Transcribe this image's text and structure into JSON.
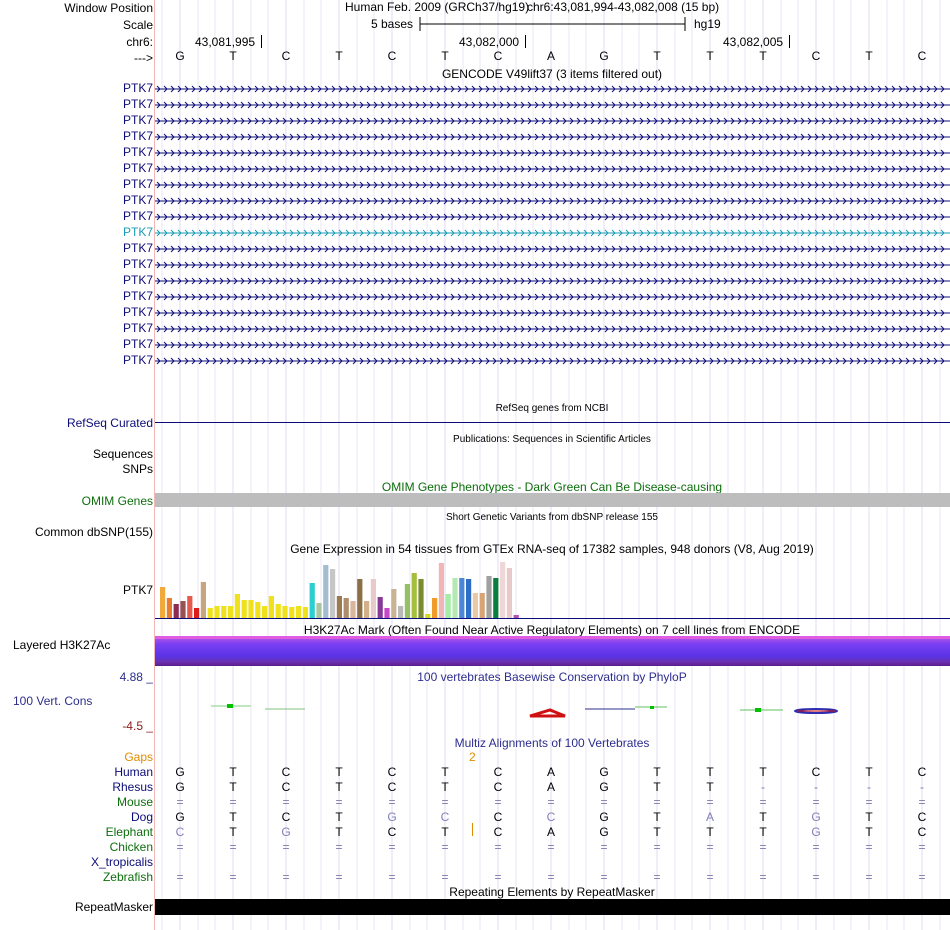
{
  "labels": {
    "window_position": "Window Position",
    "scale": "Scale",
    "chr": "chr6:",
    "strand": "--->",
    "refseq": "RefSeq Curated",
    "sequences": "Sequences",
    "snps": "SNPs",
    "omim": "OMIM Genes",
    "common_dbsnp": "Common dbSNP(155)",
    "gtex": "PTK7",
    "h3k27ac": "Layered H3K27Ac",
    "cons_max": "4.88 _",
    "cons": "100 Vert. Cons",
    "cons_min": "-4.5 _",
    "gaps": "Gaps",
    "repeatmasker": "RepeatMasker"
  },
  "header": {
    "assembly": "Human Feb. 2009 (GRCh37/hg19)",
    "position": "chr6:43,081,994-43,082,008 (15 bp)",
    "scale_label": "5 bases",
    "scale_db": "hg19",
    "coord1": "43,081,995",
    "coord2": "43,082,000",
    "coord3": "43,082,005"
  },
  "bases": [
    "G",
    "T",
    "C",
    "T",
    "C",
    "T",
    "C",
    "A",
    "G",
    "T",
    "T",
    "T",
    "C",
    "T",
    "C"
  ],
  "tracks": {
    "gencode_title": "GENCODE V49lift37 (3 items filtered out)",
    "refseq_title": "RefSeq genes from NCBI",
    "publications_title": "Publications: Sequences in Scientific Articles",
    "omim_title": "OMIM Gene Phenotypes - Dark Green Can Be Disease-causing",
    "dbsnp_title": "Short Genetic Variants from dbSNP release 155",
    "gtex_title": "Gene Expression in 54 tissues from GTEx RNA-seq of 17382 samples, 948 donors (V8, Aug 2019)",
    "h3k27ac_title": "H3K27Ac Mark (Often Found Near Active Regulatory Elements) on 7 cell lines from ENCODE",
    "phylop_title": "100 vertebrates Basewise Conservation by PhyloP",
    "multiz_title": "Multiz Alignments of 100 Vertebrates",
    "gap_count": "2",
    "repeat_title": "Repeating Elements by RepeatMasker"
  },
  "genes": [
    "PTK7",
    "PTK7",
    "PTK7",
    "PTK7",
    "PTK7",
    "PTK7",
    "PTK7",
    "PTK7",
    "PTK7",
    "PTK7",
    "PTK7",
    "PTK7",
    "PTK7",
    "PTK7",
    "PTK7",
    "PTK7",
    "PTK7",
    "PTK7"
  ],
  "highlighted_gene_index": 9,
  "colors": {
    "gene_navy": "#0c0c78",
    "gene_highlight": "#1a9bb5",
    "omim_green": "#006400",
    "repeat_black": "#000000",
    "h3k27ac_purple": "#7b3ff2",
    "gaps_orange": "#e08c00",
    "phylop_label": "#2d2d8f"
  },
  "gtex_bars": [
    {
      "v": 0.55,
      "c": "#f2a93b"
    },
    {
      "v": 0.35,
      "c": "#e87d2f"
    },
    {
      "v": 0.25,
      "c": "#8b2c55"
    },
    {
      "v": 0.3,
      "c": "#9a5151"
    },
    {
      "v": 0.4,
      "c": "#e65a4e"
    },
    {
      "v": 0.18,
      "c": "#dd1c1c"
    },
    {
      "v": 0.65,
      "c": "#c7a67f"
    },
    {
      "v": 0.17,
      "c": "#f0e11d"
    },
    {
      "v": 0.22,
      "c": "#f0e11d"
    },
    {
      "v": 0.22,
      "c": "#f0e11d"
    },
    {
      "v": 0.22,
      "c": "#f0e11d"
    },
    {
      "v": 0.42,
      "c": "#f0e11d"
    },
    {
      "v": 0.32,
      "c": "#f0e11d"
    },
    {
      "v": 0.32,
      "c": "#f0e11d"
    },
    {
      "v": 0.28,
      "c": "#f0e11d"
    },
    {
      "v": 0.22,
      "c": "#f0e11d"
    },
    {
      "v": 0.4,
      "c": "#f0e11d"
    },
    {
      "v": 0.25,
      "c": "#f0e11d"
    },
    {
      "v": 0.22,
      "c": "#f0e11d"
    },
    {
      "v": 0.2,
      "c": "#f0e11d"
    },
    {
      "v": 0.22,
      "c": "#f0e11d"
    },
    {
      "v": 0.2,
      "c": "#f0e11d"
    },
    {
      "v": 0.63,
      "c": "#2ccfcf"
    },
    {
      "v": 0.27,
      "c": "#a9c4a0"
    },
    {
      "v": 0.95,
      "c": "#a4bccf"
    },
    {
      "v": 0.88,
      "c": "#c6c6c6"
    },
    {
      "v": 0.4,
      "c": "#9b7a52"
    },
    {
      "v": 0.35,
      "c": "#b08c6a"
    },
    {
      "v": 0.3,
      "c": "#d9b59b"
    },
    {
      "v": 0.7,
      "c": "#8c7048"
    },
    {
      "v": 0.3,
      "c": "#d2b08a"
    },
    {
      "v": 0.7,
      "c": "#e8caca"
    },
    {
      "v": 0.38,
      "c": "#863c96"
    },
    {
      "v": 0.18,
      "c": "#c946c9"
    },
    {
      "v": 0.52,
      "c": "#c8b494"
    },
    {
      "v": 0.22,
      "c": "#b9b9b9"
    },
    {
      "v": 0.6,
      "c": "#97c063"
    },
    {
      "v": 0.8,
      "c": "#a3bf3c"
    },
    {
      "v": 0.7,
      "c": "#7a8c31"
    },
    {
      "v": 0.07,
      "c": "#dbd51b"
    },
    {
      "v": 0.35,
      "c": "#f09c2b"
    },
    {
      "v": 0.98,
      "c": "#f2b5b5"
    },
    {
      "v": 0.42,
      "c": "#a6eba6"
    },
    {
      "v": 0.72,
      "c": "#b5e8b5"
    },
    {
      "v": 0.72,
      "c": "#4b87d6"
    },
    {
      "v": 0.7,
      "c": "#2f6ec6"
    },
    {
      "v": 0.45,
      "c": "#ecc9a6"
    },
    {
      "v": 0.45,
      "c": "#d8a376"
    },
    {
      "v": 0.75,
      "c": "#a0a0a0"
    },
    {
      "v": 0.72,
      "c": "#0a7e3e"
    },
    {
      "v": 1.0,
      "c": "#f0d7d7"
    },
    {
      "v": 0.9,
      "c": "#e8caca"
    },
    {
      "v": 0.05,
      "c": "#b84fb8"
    }
  ],
  "multiz": [
    {
      "name": "Gaps",
      "color": "#e08c00",
      "kind": "gaps"
    },
    {
      "name": "Human",
      "color": "#0c0c78",
      "seq": [
        "G",
        "T",
        "C",
        "T",
        "C",
        "T",
        "C",
        "A",
        "G",
        "T",
        "T",
        "T",
        "C",
        "T",
        "C"
      ]
    },
    {
      "name": "Rhesus",
      "color": "#0c0c78",
      "seq": [
        "G",
        "T",
        "C",
        "T",
        "C",
        "T",
        "C",
        "A",
        "G",
        "T",
        "T",
        "-",
        "-",
        "-",
        "-"
      ]
    },
    {
      "name": "Mouse",
      "color": "#0c6e0c",
      "seq": [
        "=",
        "=",
        "=",
        "=",
        "=",
        "=",
        "=",
        "=",
        "=",
        "=",
        "=",
        "=",
        "=",
        "=",
        "="
      ]
    },
    {
      "name": "Dog",
      "color": "#0c0c78",
      "seq": [
        "G",
        "T",
        "C",
        "T",
        "G",
        "C",
        "C",
        "C",
        "G",
        "T",
        "A",
        "T",
        "G",
        "T",
        "C"
      ]
    },
    {
      "name": "Elephant",
      "color": "#0c6e0c",
      "seq": [
        "C",
        "T",
        "G",
        "T",
        "C",
        "T",
        "C",
        "A",
        "G",
        "T",
        "T",
        "T",
        "G",
        "T",
        "C"
      ]
    },
    {
      "name": "Chicken",
      "color": "#0c6e0c",
      "seq": [
        "=",
        "=",
        "=",
        "=",
        "=",
        "=",
        "=",
        "=",
        "=",
        "=",
        "=",
        "=",
        "=",
        "=",
        "="
      ]
    },
    {
      "name": "X_tropicalis",
      "color": "#0c0c78",
      "seq": [
        "",
        "",
        "",
        "",
        "",
        "",
        "",
        "",
        "",
        "",
        "",
        "",
        "",
        "",
        ""
      ]
    },
    {
      "name": "Zebrafish",
      "color": "#0c6e0c",
      "seq": [
        "=",
        "=",
        "=",
        "=",
        "=",
        "=",
        "=",
        "=",
        "=",
        "=",
        "=",
        "=",
        "=",
        "=",
        "="
      ]
    }
  ]
}
